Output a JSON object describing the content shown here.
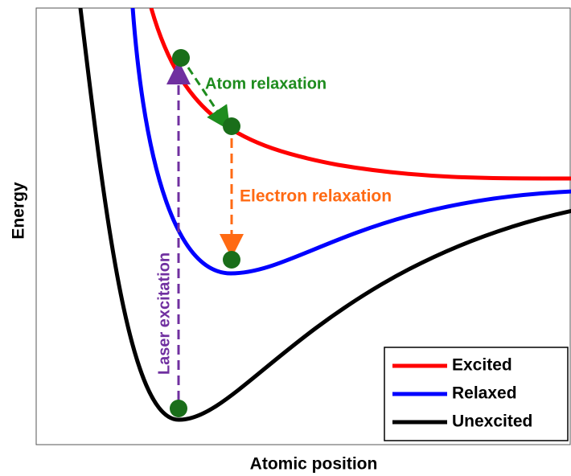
{
  "axes": {
    "x_label": "Atomic position",
    "y_label": "Energy"
  },
  "annotations": {
    "atom_relaxation": "Atom relaxation",
    "electron_relaxation": "Electron relaxation",
    "laser_excitation": "Laser excitation"
  },
  "legend": [
    {
      "name": "Excited",
      "color": "#ff0000"
    },
    {
      "name": "Relaxed",
      "color": "#0000ff"
    },
    {
      "name": "Unexcited",
      "color": "#000000"
    }
  ]
}
